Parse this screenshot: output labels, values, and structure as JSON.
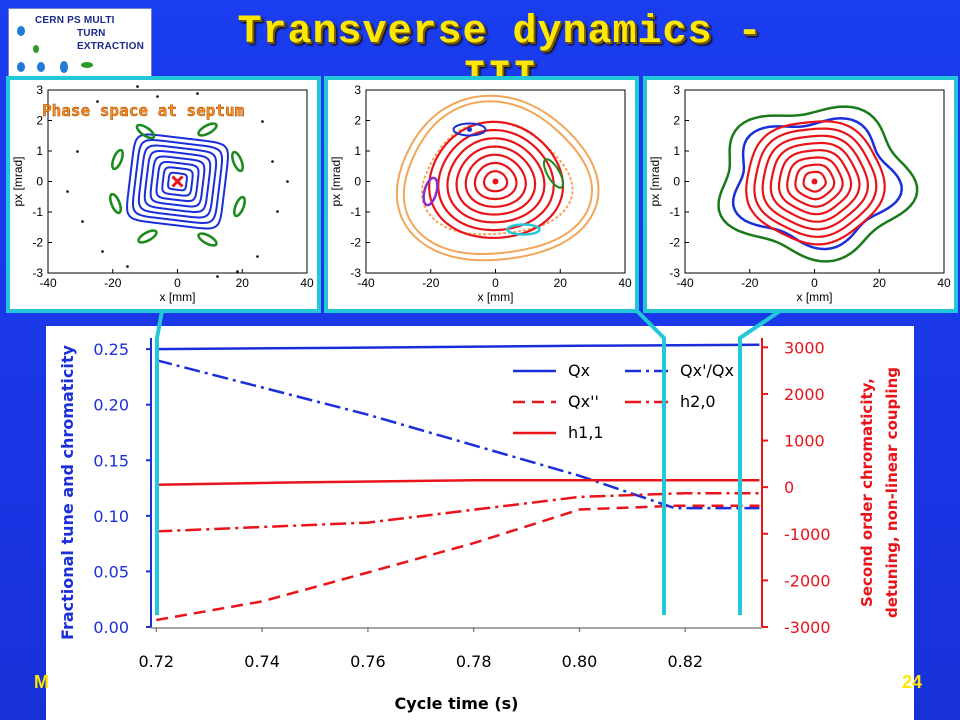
{
  "slide": {
    "title": "Transverse dynamics - III",
    "logo_lines": [
      "CERN PS MULTI",
      "TURN",
      "EXTRACTION"
    ],
    "footer_left": "M",
    "footer_right": "24"
  },
  "phase_space": {
    "septum_label": "Phase space at septum",
    "x_label": "x [mm]",
    "y_label": "px [mrad]",
    "x_ticks": [
      "-40",
      "-20",
      "0",
      "20",
      "40"
    ],
    "y_ticks": [
      "3",
      "2",
      "1",
      "0",
      "-1",
      "-2",
      "-3"
    ]
  },
  "chart_data": {
    "type": "line",
    "xlabel": "Cycle time (s)",
    "ylabel_left": "Fractional tune and chromaticity",
    "ylabel_right_line1": "Second order chromaticity,",
    "ylabel_right_line2": "detuning, non-linear coupling",
    "xlim": [
      0.719,
      0.8345
    ],
    "ylim_left": [
      0.0,
      0.26
    ],
    "ylim_right": [
      -3000,
      3200
    ],
    "x_ticks": [
      "0.72",
      "0.74",
      "0.76",
      "0.78",
      "0.80",
      "0.82"
    ],
    "y_ticks_left": [
      "0.25",
      "0.20",
      "0.15",
      "0.10",
      "0.05",
      "0.00"
    ],
    "y_ticks_right": [
      "3000",
      "2000",
      "1000",
      "0",
      "-1000",
      "-2000",
      "-3000"
    ],
    "series": [
      {
        "name": "Qx",
        "axis": "left",
        "color": "#1a2fd9",
        "style": "solid",
        "x": [
          0.72,
          0.75,
          0.8,
          0.834
        ],
        "y": [
          0.25,
          0.251,
          0.253,
          0.254
        ]
      },
      {
        "name": "Qx'/Qx",
        "axis": "left",
        "color": "#1a2fd9",
        "style": "dashdot",
        "x": [
          0.72,
          0.76,
          0.8,
          0.818,
          0.834
        ],
        "y": [
          0.24,
          0.191,
          0.136,
          0.107,
          0.107
        ]
      },
      {
        "name": "Qx''",
        "axis": "right",
        "color": "#e8141a",
        "style": "dashed",
        "x": [
          0.72,
          0.74,
          0.76,
          0.78,
          0.8,
          0.818,
          0.834
        ],
        "y": [
          -2850,
          -2450,
          -1830,
          -1200,
          -480,
          -400,
          -400
        ]
      },
      {
        "name": "h2,0",
        "axis": "right",
        "color": "#e8141a",
        "style": "dashdot",
        "x": [
          0.72,
          0.76,
          0.8,
          0.82,
          0.834
        ],
        "y": [
          -950,
          -760,
          -210,
          -130,
          -130
        ]
      },
      {
        "name": "h1,1",
        "axis": "right",
        "color": "#e8141a",
        "style": "solid",
        "x": [
          0.72,
          0.745,
          0.78,
          0.834
        ],
        "y": [
          50,
          100,
          150,
          150
        ]
      }
    ]
  }
}
